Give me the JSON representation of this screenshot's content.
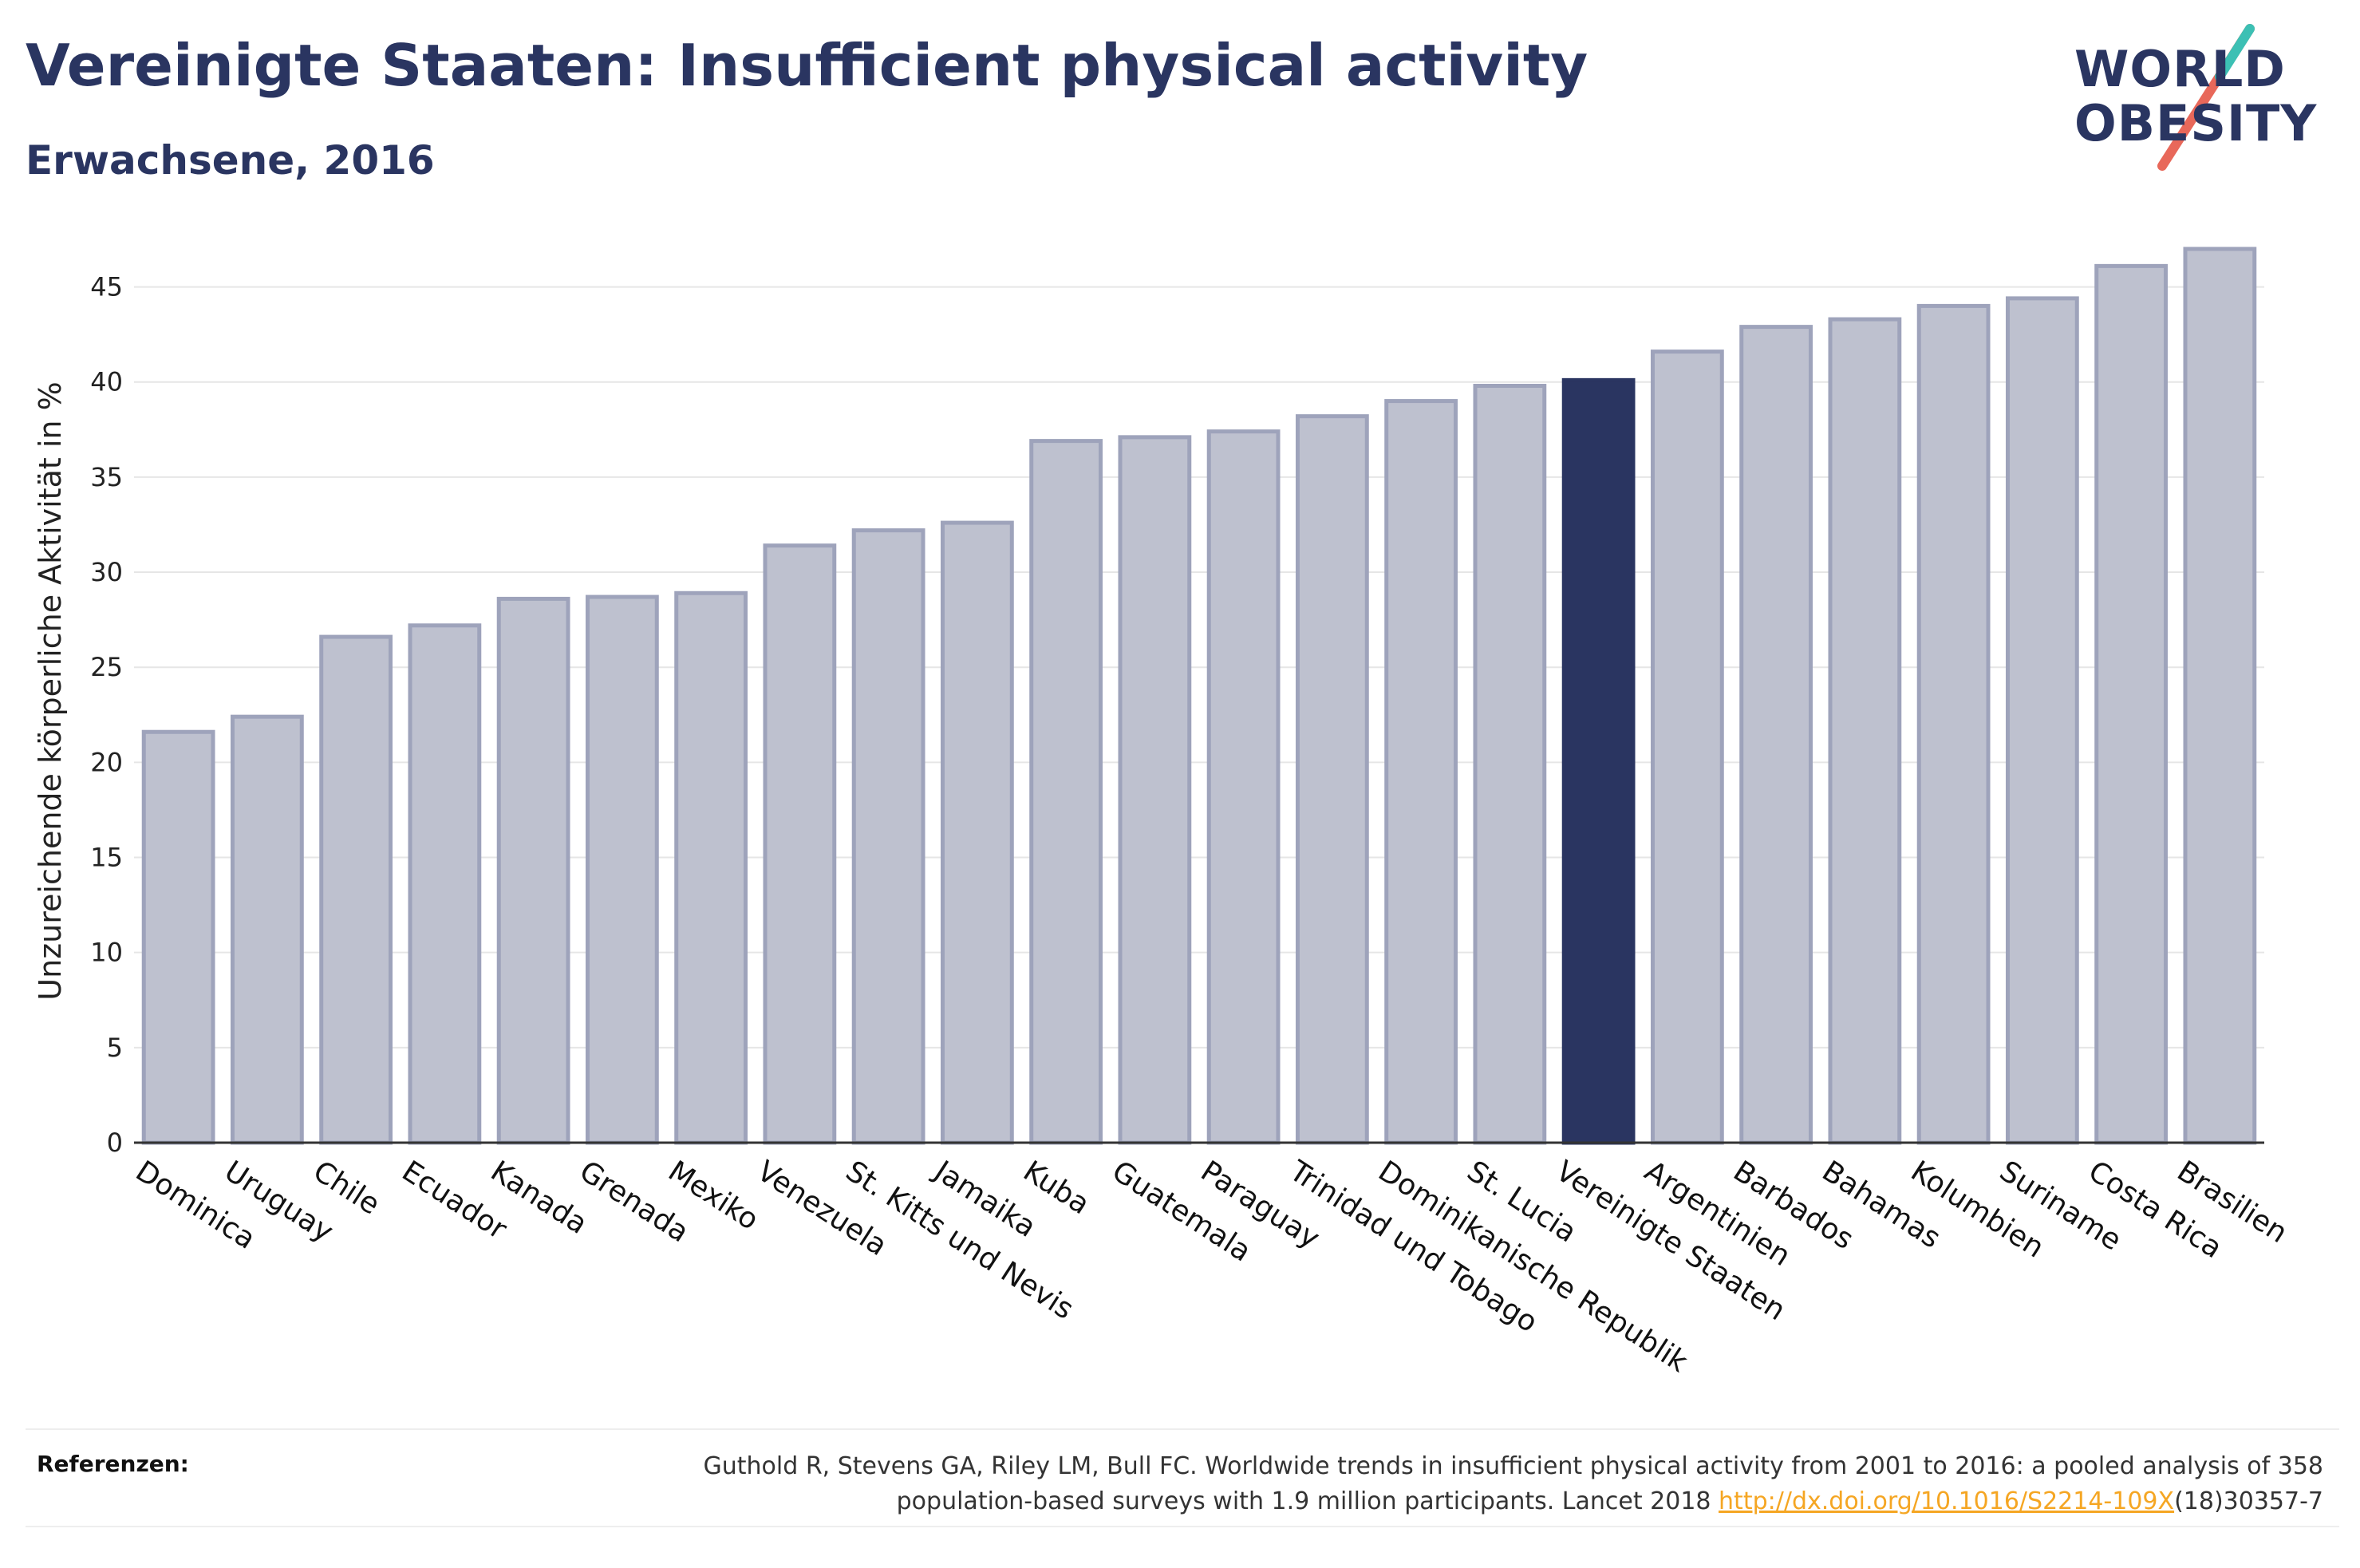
{
  "title": "Vereinigte Staaten: Insufficient physical activity",
  "subtitle": "Erwachsene, 2016",
  "logo": {
    "line1": "WORLD",
    "line2": "OBESITY"
  },
  "references": {
    "label": "Referenzen:",
    "text_line1": "Guthold R, Stevens GA, Riley LM, Bull FC. Worldwide trends in insufficient physical activity from 2001 to 2016: a pooled analysis of 358",
    "text_line2_prefix": "population-based surveys with 1.9 million participants. Lancet 2018 ",
    "link": "http://dx.doi.org/10.1016/S2214-109X",
    "text_line2_suffix": "(18)30357-7"
  },
  "colors": {
    "title": "#2a3561",
    "bar_fill": "#bec1cf",
    "bar_stroke": "#9ea3bb",
    "highlight": "#2a3561",
    "link": "#f5a623"
  },
  "chart_data": {
    "type": "bar",
    "ylabel": "Unzureichende körperliche Aktivität in %",
    "xlabel": "",
    "ylim": [
      0,
      47.5
    ],
    "yticks": [
      0,
      5,
      10,
      15,
      20,
      25,
      30,
      35,
      40,
      45
    ],
    "grid": true,
    "highlight": "Vereinigte Staaten",
    "categories": [
      "Dominica",
      "Uruguay",
      "Chile",
      "Ecuador",
      "Kanada",
      "Grenada",
      "Mexiko",
      "Venezuela",
      "St. Kitts und Nevis",
      "Jamaika",
      "Kuba",
      "Guatemala",
      "Paraguay",
      "Trinidad und Tobago",
      "Dominikanische Republik",
      "St. Lucia",
      "Vereinigte Staaten",
      "Argentinien",
      "Barbados",
      "Bahamas",
      "Kolumbien",
      "Suriname",
      "Costa Rica",
      "Brasilien"
    ],
    "values": [
      21.6,
      22.4,
      26.6,
      27.2,
      28.6,
      28.7,
      28.9,
      31.4,
      32.2,
      32.6,
      36.9,
      37.1,
      37.4,
      38.2,
      39.0,
      39.8,
      40.1,
      41.6,
      42.9,
      43.3,
      44.0,
      44.4,
      46.1,
      47.0
    ]
  }
}
